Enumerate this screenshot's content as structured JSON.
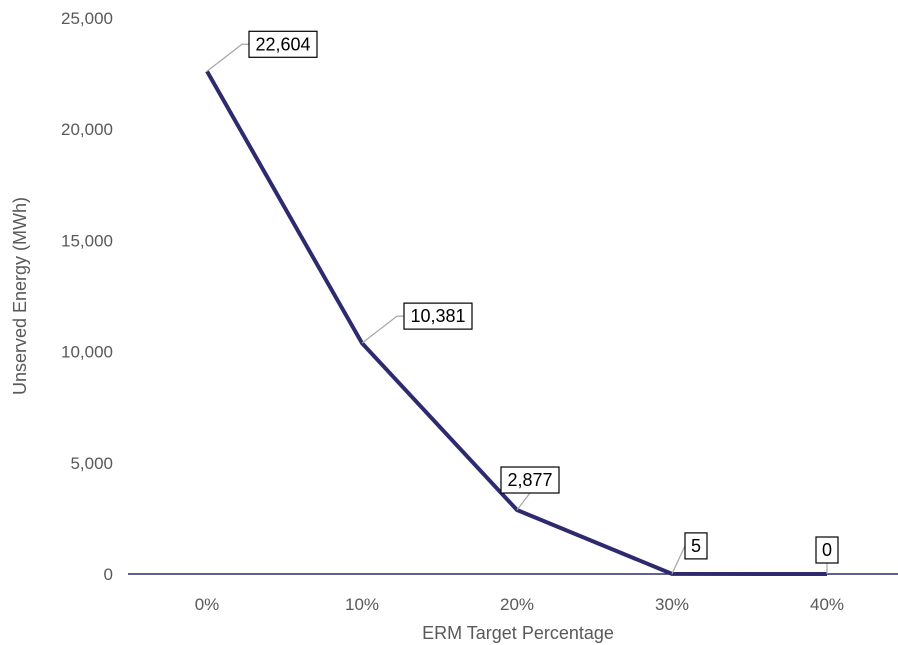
{
  "chart_data": {
    "type": "line",
    "title": "",
    "xlabel": "ERM Target Percentage",
    "ylabel": "Unserved Energy (MWh)",
    "categories": [
      "0%",
      "10%",
      "20%",
      "30%",
      "40%"
    ],
    "series": [
      {
        "values": [
          22604,
          10381,
          2877,
          5,
          0
        ]
      }
    ],
    "data_labels": [
      "22,604",
      "10,381",
      "2,877",
      "5",
      "0"
    ],
    "yticks": [
      "0",
      "5,000",
      "10,000",
      "15,000",
      "20,000",
      "25,000"
    ],
    "ylim": [
      0,
      25000
    ],
    "grid": false,
    "legend": "none",
    "colors": {
      "line": "#2e2a6e",
      "axis": "#2e2a6e",
      "leader": "#a6a6a6",
      "text": "#595959"
    }
  }
}
